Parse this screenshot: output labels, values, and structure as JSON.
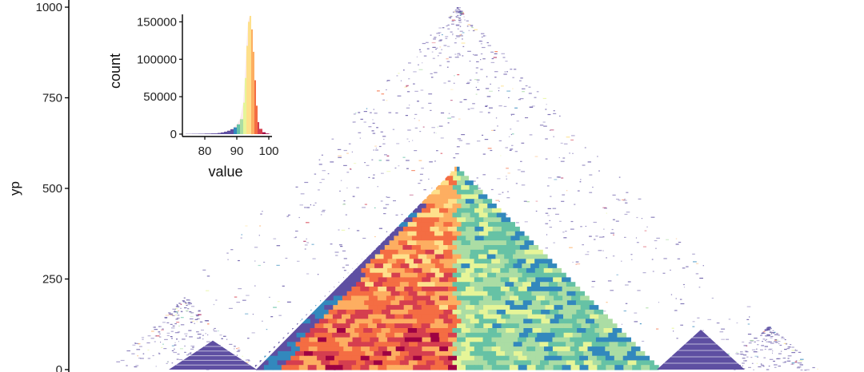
{
  "chart_data": [
    {
      "type": "heatmap",
      "title": "",
      "xlabel": "",
      "ylabel": "yp",
      "ylim": [
        0,
        1000
      ],
      "yticks": [
        0,
        250,
        500,
        750,
        1000
      ],
      "grid": false,
      "shape": "triangular",
      "palette": [
        "#5E4FA2",
        "#3288BD",
        "#66C2A5",
        "#ABDDA4",
        "#E6F598",
        "#FEE08B",
        "#FDAE61",
        "#F46D43",
        "#D53E4F",
        "#9E0142"
      ],
      "blocks": [
        {
          "center_x": 571,
          "peak_y": 560,
          "half_width": 255,
          "fill": "dense"
        },
        {
          "center_x": 571,
          "peak_y": 1000,
          "half_width": 440,
          "fill": "sparse"
        },
        {
          "center_x": 266,
          "peak_y": 80,
          "half_width": 55,
          "fill": "blue"
        },
        {
          "center_x": 876,
          "peak_y": 110,
          "half_width": 55,
          "fill": "blue"
        },
        {
          "center_x": 230,
          "peak_y": 200,
          "half_width": 100,
          "fill": "sparse"
        },
        {
          "center_x": 960,
          "peak_y": 120,
          "half_width": 70,
          "fill": "sparse"
        }
      ]
    },
    {
      "type": "bar",
      "title": "",
      "xlabel": "value",
      "ylabel": "count",
      "xlim": [
        73,
        101
      ],
      "ylim": [
        0,
        160000
      ],
      "xticks": [
        80,
        90,
        100
      ],
      "yticks": [
        0,
        50000,
        100000,
        150000
      ],
      "palette": "spectral",
      "x": [
        74,
        76,
        78,
        80,
        82,
        84,
        85,
        86,
        87,
        88,
        89,
        90,
        91,
        92,
        92.5,
        93,
        93.5,
        94,
        94.5,
        95,
        95.5,
        96,
        96.5,
        97,
        98,
        99,
        100
      ],
      "values": [
        300,
        400,
        500,
        700,
        1000,
        1500,
        2200,
        3200,
        4500,
        6500,
        9000,
        13000,
        20000,
        42000,
        75000,
        118000,
        150000,
        158000,
        140000,
        110000,
        72000,
        38000,
        16000,
        7000,
        2500,
        900,
        300
      ]
    }
  ]
}
